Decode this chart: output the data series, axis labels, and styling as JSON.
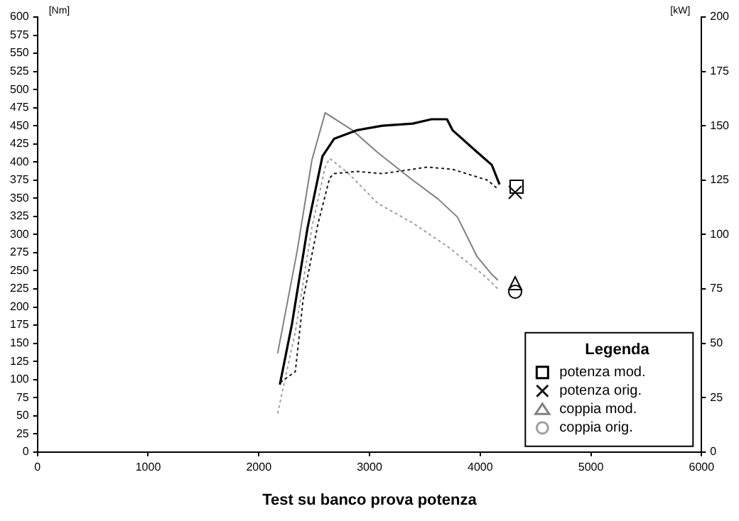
{
  "chart_data": {
    "type": "line",
    "ylabel": "[Nm]",
    "y2label": "[kW]",
    "legend_title": "Legenda",
    "legend": "bottom right",
    "grid": false,
    "xlim": [
      0,
      6000
    ],
    "xticks": [
      0,
      1000,
      2000,
      3000,
      4000,
      5000,
      6000
    ],
    "ylim": [
      0,
      600
    ],
    "yticks": [
      0,
      25,
      50,
      75,
      100,
      125,
      150,
      175,
      200,
      225,
      250,
      275,
      300,
      325,
      350,
      375,
      400,
      425,
      450,
      475,
      500,
      525,
      550,
      575,
      600
    ],
    "y2lim": [
      0,
      200
    ],
    "y2ticks": [
      0,
      25,
      50,
      75,
      100,
      125,
      150,
      175,
      200
    ],
    "annotations": [
      "Test su banco prova potenza"
    ],
    "series": [
      {
        "name": "potenza mod.",
        "color": "#000000",
        "axis": "y2",
        "line_style": "solid",
        "x": [
          2190,
          2300,
          2440,
          2575,
          2680,
          2890,
          3115,
          3390,
          3560,
          3700,
          3750,
          3970,
          4105,
          4175
        ],
        "values": [
          31,
          59,
          103,
          136,
          144,
          148,
          150,
          151,
          153,
          153,
          148,
          138,
          132,
          123
        ]
      },
      {
        "name": "potenza orig.",
        "color": "#1a1a1a",
        "axis": "y2",
        "line_style": "dotted",
        "x": [
          2195,
          2330,
          2400,
          2535,
          2640,
          2680,
          2885,
          3115,
          3390,
          3520,
          3750,
          4065,
          4160
        ],
        "values": [
          32,
          37,
          70,
          105,
          126,
          128,
          129,
          128,
          130,
          131,
          130,
          125,
          121
        ]
      },
      {
        "name": "coppia mod.",
        "color": "#808080",
        "axis": "y",
        "line_style": "solid",
        "x": [
          2170,
          2345,
          2480,
          2600,
          2640,
          2845,
          3075,
          3390,
          3620,
          3795,
          3970,
          4105,
          4160
        ],
        "values": [
          136,
          276,
          403,
          468,
          464,
          444,
          413,
          375,
          349,
          324,
          270,
          245,
          237
        ]
      },
      {
        "name": "coppia orig.",
        "color": "#a0a0a0",
        "axis": "y",
        "line_style": "dotted",
        "x": [
          2170,
          2330,
          2480,
          2600,
          2640,
          2805,
          3075,
          3390,
          3700,
          4025,
          4160
        ],
        "values": [
          53,
          166,
          310,
          393,
          405,
          385,
          343,
          316,
          284,
          245,
          225
        ]
      }
    ]
  }
}
